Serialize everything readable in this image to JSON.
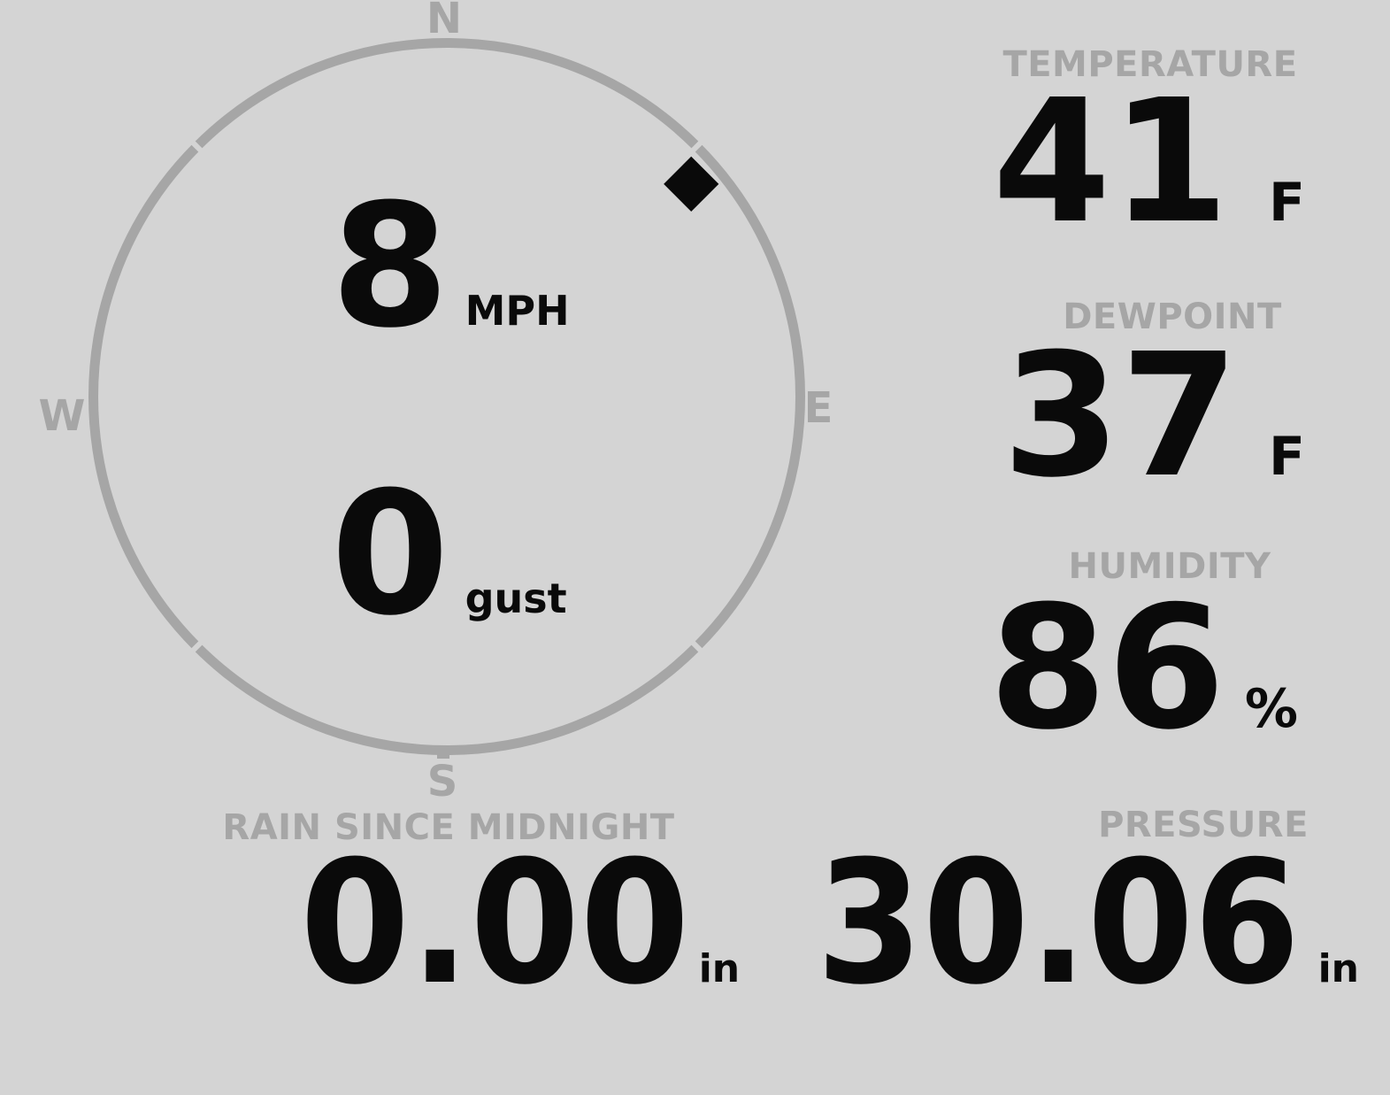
{
  "theme": {
    "background": "#d4d4d4",
    "muted_gray": "#a6a6a6",
    "ink_black": "#0a0a0a"
  },
  "compass": {
    "cardinals": {
      "north": "N",
      "east": "E",
      "south": "S",
      "west": "W"
    },
    "wind_speed": {
      "value": "8",
      "unit": "MPH"
    },
    "wind_gust": {
      "value": "0",
      "unit": "gust"
    },
    "direction_deg": 49
  },
  "metrics": {
    "temperature": {
      "label": "TEMPERATURE",
      "value": "41",
      "unit": "F"
    },
    "dewpoint": {
      "label": "DEWPOINT",
      "value": "37",
      "unit": "F"
    },
    "humidity": {
      "label": "HUMIDITY",
      "value": "86",
      "unit": "%"
    },
    "rain": {
      "label": "RAIN SINCE MIDNIGHT",
      "value": "0.00",
      "unit": "in"
    },
    "pressure": {
      "label": "PRESSURE",
      "value": "30.06",
      "unit": "in"
    }
  }
}
